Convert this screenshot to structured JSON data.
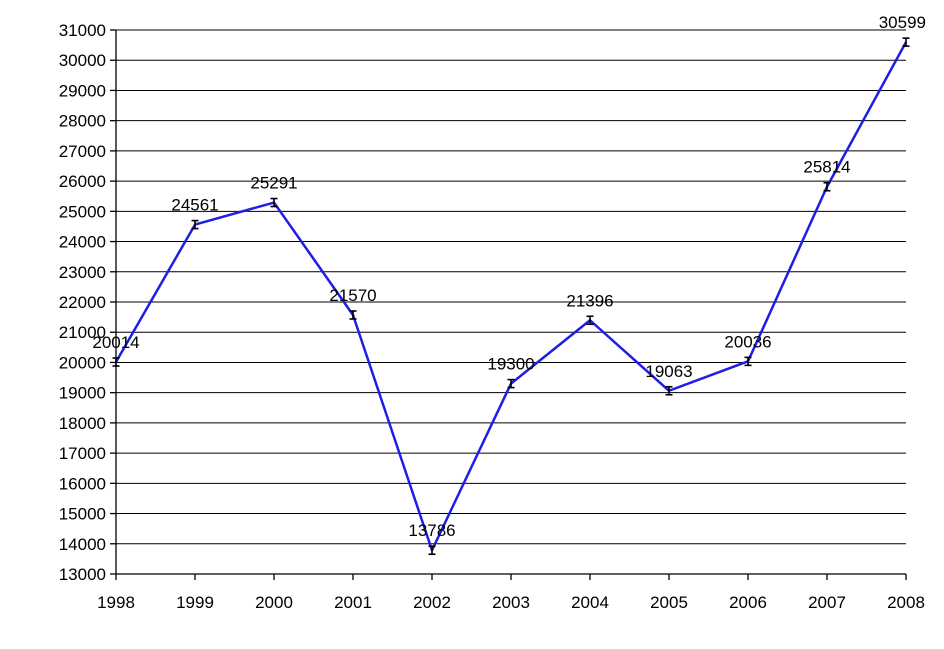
{
  "chart_data": {
    "type": "line",
    "title": "",
    "xlabel": "",
    "ylabel": "",
    "x": [
      "1998",
      "1999",
      "2000",
      "2001",
      "2002",
      "2003",
      "2004",
      "2005",
      "2006",
      "2007",
      "2008"
    ],
    "series": [
      {
        "values": [
          20014,
          24561,
          25291,
          21570,
          13786,
          19300,
          21396,
          19063,
          20036,
          25814,
          30599
        ],
        "labels": [
          "20014",
          "24561",
          "25291",
          "21570",
          "13786",
          "19300",
          "21396",
          "19063",
          "20036",
          "25814",
          "30599"
        ],
        "color": "#1e1ee6"
      }
    ],
    "ylim": [
      13000,
      31000
    ],
    "y_ticks": [
      "13000",
      "14000",
      "15000",
      "16000",
      "17000",
      "18000",
      "19000",
      "20000",
      "21000",
      "22000",
      "23000",
      "24000",
      "25000",
      "26000",
      "27000",
      "28000",
      "29000",
      "30000",
      "31000"
    ],
    "grid": true,
    "legend": "none"
  }
}
